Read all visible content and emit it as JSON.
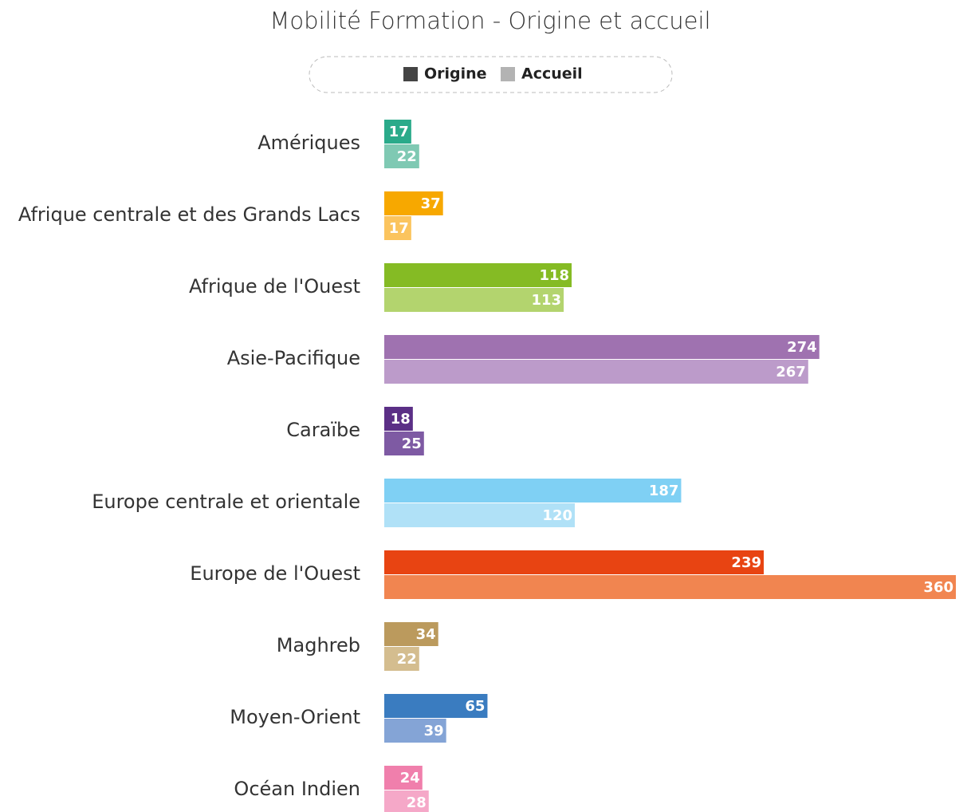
{
  "chart_data": {
    "type": "bar",
    "orientation": "horizontal",
    "title": "Mobilité Formation - Origine et accueil",
    "categories": [
      "Amériques",
      "Afrique centrale et des Grands Lacs",
      "Afrique de l'Ouest",
      "Asie-Pacifique",
      "Caraïbe",
      "Europe centrale et orientale",
      "Europe de l'Ouest",
      "Maghreb",
      "Moyen-Orient",
      "Océan Indien"
    ],
    "series": [
      {
        "name": "Origine",
        "color": "#444444",
        "values": [
          17,
          37,
          118,
          274,
          18,
          187,
          239,
          34,
          65,
          24
        ],
        "colors": [
          "#2aaa8a",
          "#f7a800",
          "#85bb24",
          "#9f72b0",
          "#5b2f86",
          "#7fd0f4",
          "#e84412",
          "#bb9a5d",
          "#3a7cc0",
          "#f07fac"
        ]
      },
      {
        "name": "Accueil",
        "color": "#b3b3b3",
        "values": [
          22,
          17,
          113,
          267,
          25,
          120,
          360,
          22,
          39,
          28
        ],
        "colors": [
          "#7fc9b3",
          "#fbc45e",
          "#b3d46e",
          "#bc9bca",
          "#7e5aa3",
          "#b0e1f7",
          "#f18550",
          "#d4bd8f",
          "#84a4d6",
          "#f5a8c8"
        ]
      }
    ],
    "xlim": [
      0,
      360
    ],
    "legend": "top"
  }
}
